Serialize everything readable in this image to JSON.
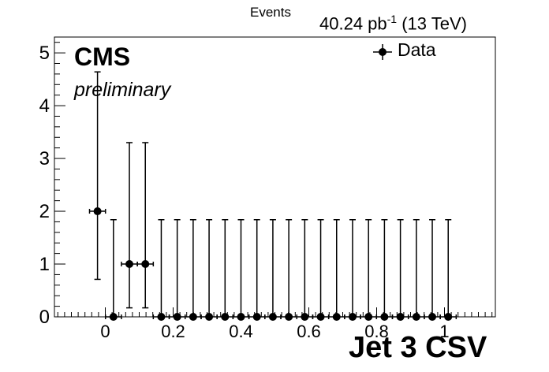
{
  "chart_data": {
    "type": "scatter",
    "title": "",
    "ylabel": "Events",
    "xlabel": "Jet 3 CSV",
    "experiment": "CMS",
    "status": "preliminary",
    "lumi_prefix": "40.24 pb",
    "lumi_exponent": "-1",
    "lumi_suffix": " (13 TeV)",
    "legend": [
      {
        "label": "Data",
        "position": "top-right",
        "marker": "filled-circle-with-errorbars"
      }
    ],
    "xlim": [
      -0.15,
      1.15
    ],
    "ylim": [
      0,
      5.3
    ],
    "xticks": [
      "0",
      "0.2",
      "0.4",
      "0.6",
      "0.8",
      "1"
    ],
    "yticks": [
      "0",
      "1",
      "2",
      "3",
      "4",
      "5"
    ],
    "bin_width": 0.047,
    "series": [
      {
        "name": "Data",
        "points": [
          {
            "x": -0.023,
            "y": 2,
            "err_low": 1.29,
            "err_high": 2.64
          },
          {
            "x": 0.024,
            "y": 0,
            "err_low": 0,
            "err_high": 1.84
          },
          {
            "x": 0.071,
            "y": 1,
            "err_low": 0.83,
            "err_high": 2.3
          },
          {
            "x": 0.118,
            "y": 1,
            "err_low": 0.83,
            "err_high": 2.3
          },
          {
            "x": 0.165,
            "y": 0,
            "err_low": 0,
            "err_high": 1.84
          },
          {
            "x": 0.212,
            "y": 0,
            "err_low": 0,
            "err_high": 1.84
          },
          {
            "x": 0.259,
            "y": 0,
            "err_low": 0,
            "err_high": 1.84
          },
          {
            "x": 0.306,
            "y": 0,
            "err_low": 0,
            "err_high": 1.84
          },
          {
            "x": 0.353,
            "y": 0,
            "err_low": 0,
            "err_high": 1.84
          },
          {
            "x": 0.4,
            "y": 0,
            "err_low": 0,
            "err_high": 1.84
          },
          {
            "x": 0.447,
            "y": 0,
            "err_low": 0,
            "err_high": 1.84
          },
          {
            "x": 0.494,
            "y": 0,
            "err_low": 0,
            "err_high": 1.84
          },
          {
            "x": 0.541,
            "y": 0,
            "err_low": 0,
            "err_high": 1.84
          },
          {
            "x": 0.588,
            "y": 0,
            "err_low": 0,
            "err_high": 1.84
          },
          {
            "x": 0.635,
            "y": 0,
            "err_low": 0,
            "err_high": 1.84
          },
          {
            "x": 0.682,
            "y": 0,
            "err_low": 0,
            "err_high": 1.84
          },
          {
            "x": 0.729,
            "y": 0,
            "err_low": 0,
            "err_high": 1.84
          },
          {
            "x": 0.776,
            "y": 0,
            "err_low": 0,
            "err_high": 1.84
          },
          {
            "x": 0.823,
            "y": 0,
            "err_low": 0,
            "err_high": 1.84
          },
          {
            "x": 0.87,
            "y": 0,
            "err_low": 0,
            "err_high": 1.84
          },
          {
            "x": 0.917,
            "y": 0,
            "err_low": 0,
            "err_high": 1.84
          },
          {
            "x": 0.964,
            "y": 0,
            "err_low": 0,
            "err_high": 1.84
          },
          {
            "x": 1.011,
            "y": 0,
            "err_low": 0,
            "err_high": 1.84
          }
        ]
      }
    ],
    "colors": {
      "marker": "#000000",
      "axis": "#000000",
      "background": "#ffffff"
    },
    "grid": false
  }
}
